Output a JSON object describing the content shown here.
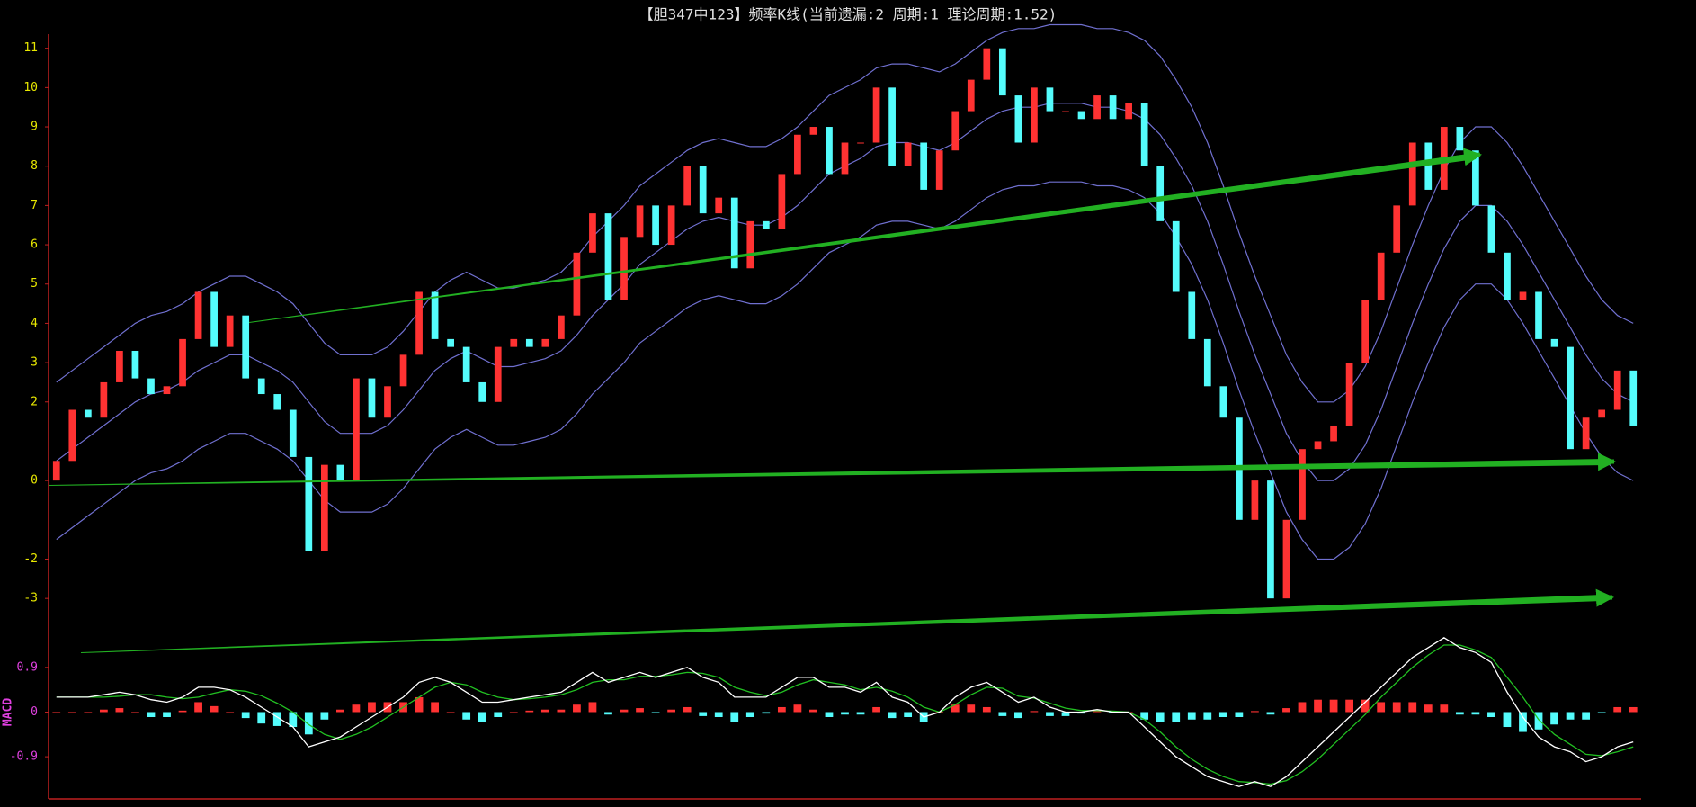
{
  "chart_data": [
    {
      "type": "candlestick",
      "title": "【胆347中123】频率K线(当前遗漏:2 周期:1 理论周期:1.52)",
      "open": [
        0,
        0.5,
        1.8,
        1.6,
        2.5,
        3.3,
        2.6,
        2.2,
        2.4,
        3.6,
        4.8,
        3.4,
        4.2,
        2.6,
        2.2,
        1.8,
        0.6,
        -1.8,
        0.4,
        0,
        2.6,
        1.6,
        2.4,
        3.2,
        4.8,
        3.6,
        3.4,
        2.5,
        2,
        3.4,
        3.6,
        3.4,
        3.6,
        4.2,
        5.8,
        6.8,
        4.6,
        6.2,
        7,
        6,
        7,
        8,
        6.8,
        7.2,
        5.4,
        6.6,
        6.4,
        7.8,
        8.8,
        9,
        7.8,
        8.6,
        8.6,
        10,
        8,
        8.6,
        7.4,
        8.4,
        9.4,
        10.2,
        11,
        9.8,
        8.6,
        10,
        9.4,
        9.4,
        9.2,
        9.8,
        9.2,
        9.6,
        8,
        6.6,
        4.8,
        3.6,
        2.4,
        1.6,
        -1,
        0,
        -3,
        -1,
        0.8,
        1,
        1.4,
        3,
        4.6,
        5.8,
        7,
        8.6,
        7.4,
        9,
        8.4,
        7,
        5.8,
        4.6,
        4.8,
        3.6,
        3.4,
        0.8,
        1.6,
        1.8,
        2.8
      ],
      "close": [
        0.5,
        1.8,
        1.6,
        2.5,
        3.3,
        2.6,
        2.2,
        2.4,
        3.6,
        4.8,
        3.4,
        4.2,
        2.6,
        2.2,
        1.8,
        0.6,
        -1.8,
        0.4,
        0,
        2.6,
        1.6,
        2.4,
        3.2,
        4.8,
        3.6,
        3.4,
        2.5,
        2,
        3.4,
        3.6,
        3.4,
        3.6,
        4.2,
        5.8,
        6.8,
        4.6,
        6.2,
        7,
        6,
        7,
        8,
        6.8,
        7.2,
        5.4,
        6.6,
        6.4,
        7.8,
        8.8,
        9,
        7.8,
        8.6,
        8.6,
        10,
        8,
        8.6,
        7.4,
        8.4,
        9.4,
        10.2,
        11,
        9.8,
        8.6,
        10,
        9.4,
        9.4,
        9.2,
        9.8,
        9.2,
        9.6,
        8,
        6.6,
        4.8,
        3.6,
        2.4,
        1.6,
        -1,
        0,
        -3,
        -1,
        0.8,
        1,
        1.4,
        3,
        4.6,
        5.8,
        7,
        8.6,
        7.4,
        9,
        8.4,
        7,
        5.8,
        4.6,
        4.8,
        3.6,
        3.4,
        0.8,
        1.6,
        1.8,
        2.8,
        1.4
      ],
      "upper": [
        2.5,
        2.8,
        3.1,
        3.4,
        3.7,
        4.0,
        4.2,
        4.3,
        4.5,
        4.8,
        5.0,
        5.2,
        5.2,
        5.0,
        4.8,
        4.5,
        4.0,
        3.5,
        3.2,
        3.2,
        3.2,
        3.4,
        3.8,
        4.3,
        4.8,
        5.1,
        5.3,
        5.1,
        4.9,
        4.9,
        5.0,
        5.1,
        5.3,
        5.7,
        6.2,
        6.6,
        7.0,
        7.5,
        7.8,
        8.1,
        8.4,
        8.6,
        8.7,
        8.6,
        8.5,
        8.5,
        8.7,
        9.0,
        9.4,
        9.8,
        10.0,
        10.2,
        10.5,
        10.6,
        10.6,
        10.5,
        10.4,
        10.6,
        10.9,
        11.2,
        11.4,
        11.5,
        11.5,
        11.6,
        11.6,
        11.6,
        11.5,
        11.5,
        11.4,
        11.2,
        10.8,
        10.2,
        9.5,
        8.6,
        7.5,
        6.3,
        5.2,
        4.2,
        3.2,
        2.5,
        2.0,
        2.0,
        2.3,
        2.9,
        3.8,
        4.9,
        6.0,
        7.0,
        7.9,
        8.6,
        9.0,
        9.0,
        8.6,
        8.0,
        7.3,
        6.6,
        5.9,
        5.2,
        4.6,
        4.2,
        4.0
      ],
      "middle": [
        0.5,
        0.8,
        1.1,
        1.4,
        1.7,
        2.0,
        2.2,
        2.3,
        2.5,
        2.8,
        3.0,
        3.2,
        3.2,
        3.0,
        2.8,
        2.5,
        2.0,
        1.5,
        1.2,
        1.2,
        1.2,
        1.4,
        1.8,
        2.3,
        2.8,
        3.1,
        3.3,
        3.1,
        2.9,
        2.9,
        3.0,
        3.1,
        3.3,
        3.7,
        4.2,
        4.6,
        5.0,
        5.5,
        5.8,
        6.1,
        6.4,
        6.6,
        6.7,
        6.6,
        6.5,
        6.5,
        6.7,
        7.0,
        7.4,
        7.8,
        8.0,
        8.2,
        8.5,
        8.6,
        8.6,
        8.5,
        8.4,
        8.6,
        8.9,
        9.2,
        9.4,
        9.5,
        9.5,
        9.6,
        9.6,
        9.6,
        9.5,
        9.5,
        9.4,
        9.2,
        8.8,
        8.2,
        7.5,
        6.6,
        5.5,
        4.3,
        3.2,
        2.2,
        1.2,
        0.5,
        0.0,
        0.0,
        0.3,
        0.9,
        1.8,
        2.9,
        4.0,
        5.0,
        5.9,
        6.6,
        7.0,
        7.0,
        6.6,
        6.0,
        5.3,
        4.6,
        3.9,
        3.2,
        2.6,
        2.2,
        2.0
      ],
      "lower": [
        -1.5,
        -1.2,
        -0.9,
        -0.6,
        -0.3,
        0.0,
        0.2,
        0.3,
        0.5,
        0.8,
        1.0,
        1.2,
        1.2,
        1.0,
        0.8,
        0.5,
        0.0,
        -0.5,
        -0.8,
        -0.8,
        -0.8,
        -0.6,
        -0.2,
        0.3,
        0.8,
        1.1,
        1.3,
        1.1,
        0.9,
        0.9,
        1.0,
        1.1,
        1.3,
        1.7,
        2.2,
        2.6,
        3.0,
        3.5,
        3.8,
        4.1,
        4.4,
        4.6,
        4.7,
        4.6,
        4.5,
        4.5,
        4.7,
        5.0,
        5.4,
        5.8,
        6.0,
        6.2,
        6.5,
        6.6,
        6.6,
        6.5,
        6.4,
        6.6,
        6.9,
        7.2,
        7.4,
        7.5,
        7.5,
        7.6,
        7.6,
        7.6,
        7.5,
        7.5,
        7.4,
        7.2,
        6.8,
        6.2,
        5.5,
        4.6,
        3.5,
        2.3,
        1.2,
        0.2,
        -0.8,
        -1.5,
        -2.0,
        -2.0,
        -1.7,
        -1.1,
        -0.2,
        0.9,
        2.0,
        3.0,
        3.9,
        4.6,
        5.0,
        5.0,
        4.6,
        4.0,
        3.3,
        2.6,
        1.9,
        1.2,
        0.6,
        0.2,
        0.0
      ],
      "up_color": "#ff3232",
      "down_color": "#54fcfc",
      "band_color": "#7070d0",
      "tick_color": "#e8e800",
      "ylim": [
        -3.5,
        12
      ],
      "yticks": [
        11,
        10,
        9,
        8,
        7,
        6,
        5,
        4,
        3,
        2,
        0,
        -2,
        -3
      ]
    },
    {
      "type": "macd",
      "ylabel": "MACD",
      "diff": [
        0.3,
        0.3,
        0.3,
        0.35,
        0.4,
        0.35,
        0.25,
        0.2,
        0.3,
        0.5,
        0.5,
        0.45,
        0.3,
        0.1,
        -0.1,
        -0.3,
        -0.7,
        -0.6,
        -0.5,
        -0.3,
        -0.1,
        0.1,
        0.3,
        0.6,
        0.7,
        0.6,
        0.4,
        0.2,
        0.2,
        0.25,
        0.3,
        0.35,
        0.4,
        0.6,
        0.8,
        0.6,
        0.7,
        0.8,
        0.7,
        0.8,
        0.9,
        0.7,
        0.6,
        0.3,
        0.3,
        0.3,
        0.5,
        0.7,
        0.7,
        0.5,
        0.5,
        0.4,
        0.6,
        0.3,
        0.2,
        -0.1,
        0.0,
        0.3,
        0.5,
        0.6,
        0.4,
        0.2,
        0.3,
        0.1,
        0.0,
        0.0,
        0.05,
        0.0,
        0.0,
        -0.3,
        -0.6,
        -0.9,
        -1.1,
        -1.3,
        -1.4,
        -1.5,
        -1.4,
        -1.5,
        -1.3,
        -1.0,
        -0.7,
        -0.4,
        -0.1,
        0.2,
        0.5,
        0.8,
        1.1,
        1.3,
        1.5,
        1.3,
        1.2,
        1.0,
        0.4,
        -0.1,
        -0.5,
        -0.7,
        -0.8,
        -1.0,
        -0.9,
        -0.7,
        -0.6
      ],
      "dea": [
        0.3,
        0.3,
        0.3,
        0.3,
        0.32,
        0.35,
        0.35,
        0.3,
        0.27,
        0.3,
        0.38,
        0.45,
        0.42,
        0.33,
        0.18,
        0.0,
        -0.25,
        -0.45,
        -0.55,
        -0.45,
        -0.3,
        -0.1,
        0.1,
        0.3,
        0.5,
        0.6,
        0.55,
        0.4,
        0.3,
        0.25,
        0.27,
        0.3,
        0.35,
        0.45,
        0.6,
        0.65,
        0.65,
        0.72,
        0.72,
        0.75,
        0.8,
        0.78,
        0.7,
        0.5,
        0.4,
        0.33,
        0.4,
        0.55,
        0.65,
        0.6,
        0.55,
        0.45,
        0.5,
        0.42,
        0.3,
        0.1,
        0.0,
        0.15,
        0.35,
        0.5,
        0.48,
        0.32,
        0.28,
        0.18,
        0.08,
        0.03,
        0.03,
        0.02,
        0.0,
        -0.15,
        -0.4,
        -0.7,
        -0.95,
        -1.15,
        -1.3,
        -1.4,
        -1.42,
        -1.45,
        -1.38,
        -1.2,
        -0.95,
        -0.65,
        -0.35,
        -0.05,
        0.3,
        0.6,
        0.9,
        1.15,
        1.35,
        1.35,
        1.25,
        1.1,
        0.7,
        0.3,
        -0.15,
        -0.45,
        -0.65,
        -0.85,
        -0.88,
        -0.8,
        -0.7
      ],
      "hist": [
        0,
        0,
        0,
        0.05,
        0.08,
        0,
        -0.1,
        -0.1,
        0.03,
        0.2,
        0.12,
        0,
        -0.12,
        -0.23,
        -0.28,
        -0.3,
        -0.45,
        -0.15,
        0.05,
        0.15,
        0.2,
        0.2,
        0.2,
        0.3,
        0.2,
        0,
        -0.15,
        -0.2,
        -0.1,
        0,
        0.03,
        0.05,
        0.05,
        0.15,
        0.2,
        -0.05,
        0.05,
        0.08,
        -0.02,
        0.05,
        0.1,
        -0.08,
        -0.1,
        -0.2,
        -0.1,
        -0.03,
        0.1,
        0.15,
        0.05,
        -0.1,
        -0.05,
        -0.05,
        0.1,
        -0.12,
        -0.1,
        -0.2,
        0,
        0.15,
        0.15,
        0.1,
        -0.08,
        -0.12,
        0.02,
        -0.08,
        -0.08,
        -0.03,
        0.02,
        -0.02,
        0,
        -0.15,
        -0.2,
        -0.2,
        -0.15,
        -0.15,
        -0.1,
        -0.1,
        0.02,
        -0.05,
        0.08,
        0.2,
        0.25,
        0.25,
        0.25,
        0.25,
        0.2,
        0.2,
        0.2,
        0.15,
        0.15,
        -0.05,
        -0.05,
        -0.1,
        -0.3,
        -0.4,
        -0.35,
        -0.25,
        -0.15,
        -0.15,
        -0.02,
        0.1,
        0.1
      ],
      "diff_color": "#ffffff",
      "dea_color": "#22c022",
      "up_color": "#ff3232",
      "down_color": "#54fcfc",
      "tick_color": "#e040e0",
      "ylim": [
        -1.75,
        1.55
      ],
      "yticks": [
        0.9,
        0,
        -0.9
      ]
    }
  ]
}
